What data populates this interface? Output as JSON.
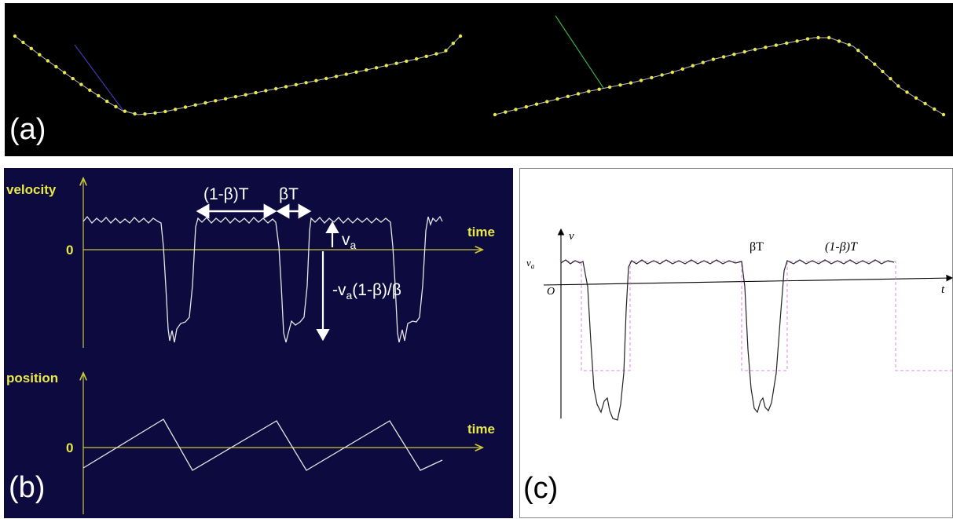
{
  "panel_a": {
    "label": "(a)",
    "colors": {
      "background": "#000000",
      "point": "#e8e84a",
      "curve": "#c8c8c8",
      "guide_left": "#3b3bb0",
      "guide_right": "#3fae3f"
    }
  },
  "panel_b": {
    "label": "(b)",
    "velocity_axis_label": "velocity",
    "position_axis_label": "position",
    "time_label_velocity": "time",
    "time_label_position": "time",
    "zero_velocity": "0",
    "zero_position": "0",
    "annotation_one_minus_beta_T": "(1-β)T",
    "annotation_beta_T": "βT",
    "annotation_va_base": "v",
    "annotation_va_sub": "a",
    "annotation_neg_prefix": "-v",
    "annotation_neg_sub": "a",
    "annotation_neg_suffix": "(1-β)/β",
    "colors": {
      "background": "#0d0a3f",
      "axis": "#c8c83a",
      "label": "#e8e84a",
      "signal": "#e6e6e6",
      "annotation": "#ffffff"
    }
  },
  "panel_c": {
    "label": "(c)",
    "axis_y_label": "v",
    "axis_x_label": "t",
    "origin_label": "O",
    "va_base": "v",
    "va_sub": "a",
    "annotation_beta_T": "βT",
    "annotation_one_minus_beta_T": "(1-β)T",
    "colors": {
      "signal": "#222222",
      "square_wave": "#d66ad6",
      "axis": "#000000"
    }
  }
}
